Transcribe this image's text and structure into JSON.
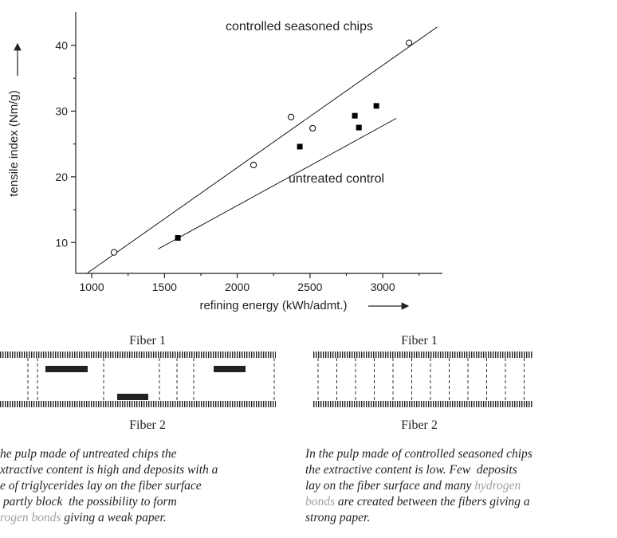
{
  "chart_data": {
    "type": "scatter",
    "x_label": "refining energy (kWh/admt.)",
    "y_label": "tensile index (Nm/g)",
    "xlim": [
      890,
      3410
    ],
    "ylim": [
      5.3,
      45.1
    ],
    "xticks": [
      1000,
      1500,
      2000,
      2500,
      3000
    ],
    "yticks": [
      10,
      20,
      30,
      40
    ],
    "xminorticks": [
      1250,
      1750,
      2250,
      2750,
      3250
    ],
    "yminorticks": [
      15,
      25,
      35
    ],
    "series": [
      {
        "name": "controlled seasoned chips",
        "marker": "circle",
        "color": "#000000",
        "x": [
          1153,
          2112,
          2370,
          2518,
          3181
        ],
        "values": [
          8.5,
          21.8,
          29.1,
          27.4,
          40.4
        ],
        "fit": {
          "x": [
            973,
            3373
          ],
          "values": [
            5.4,
            42.8
          ]
        }
      },
      {
        "name": "untreated control",
        "marker": "square",
        "color": "#000000",
        "x": [
          1592,
          2430,
          2808,
          2836,
          2956
        ],
        "values": [
          10.7,
          24.6,
          29.3,
          27.5,
          30.8
        ],
        "fit": {
          "x": [
            1455,
            3093
          ],
          "values": [
            9.0,
            28.9
          ]
        }
      }
    ]
  },
  "diagram": {
    "left": {
      "top": "Fiber 1",
      "bottom": "Fiber 2",
      "caption": [
        [
          {
            "text": "he pulp made of untreated chips the"
          }
        ],
        [
          {
            "text": "xtractive content is high and deposits with a"
          }
        ],
        [
          {
            "text": "e of triglycerides lay on the fiber surface"
          }
        ],
        [
          {
            "text": " partly block  the possibility to form"
          }
        ],
        [
          {
            "text": "rogen bonds",
            "highlight": true
          },
          {
            "text": " giving a weak paper."
          }
        ]
      ]
    },
    "right": {
      "top": "Fiber 1",
      "bottom": "Fiber 2",
      "caption": [
        [
          {
            "text": "In the pulp made of controlled seasoned chips"
          }
        ],
        [
          {
            "text": "the extractive content is low. Few  deposits"
          }
        ],
        [
          {
            "text": "lay on the fiber surface and many "
          },
          {
            "text": "hydrogen",
            "highlight": true
          }
        ],
        [
          {
            "text": "bonds",
            "highlight": true
          },
          {
            "text": " are created between the fibers giving a"
          }
        ],
        [
          {
            "text": "strong paper."
          }
        ]
      ]
    },
    "highlight_color": "#a0a0a0"
  }
}
